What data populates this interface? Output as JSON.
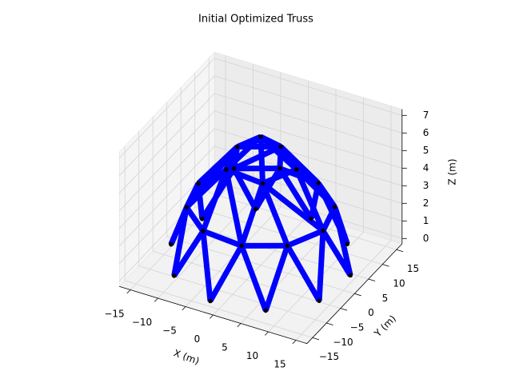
{
  "chart_data": {
    "type": "truss3d",
    "title": "Initial Optimized Truss",
    "xlabel": "X (m)",
    "ylabel": "Y (m)",
    "zlabel": "Z (m)",
    "xlim": [
      -17,
      17
    ],
    "ylim": [
      -17,
      17
    ],
    "zlim": [
      -0.3,
      7.35
    ],
    "xticks": [
      {
        "value": -15,
        "label": "−15"
      },
      {
        "value": -10,
        "label": "−10"
      },
      {
        "value": -5,
        "label": "−5"
      },
      0,
      5,
      10,
      15
    ],
    "yticks": [
      {
        "value": -15,
        "label": "−15"
      },
      {
        "value": -10,
        "label": "−10"
      },
      {
        "value": -5,
        "label": "−5"
      },
      0,
      5,
      10,
      15
    ],
    "zticks": [
      0,
      1,
      2,
      3,
      4,
      5,
      6,
      7
    ],
    "grid": true,
    "member_color": "#0000ff",
    "node_color": "#000000",
    "nodes": {
      "x": [
        7.5,
        13.7,
        14.67,
        10.04,
        1.57,
        -7.5,
        -13.7,
        -14.67,
        -10.04,
        -1.57,
        8.92,
        11.93,
        10.39,
        4.88,
        -2.49,
        -8.92,
        -11.93,
        -10.39,
        -4.88,
        2.49,
        3.0,
        5.87,
        0.63,
        -5.48,
        -4.01,
        0
      ],
      "y": [
        -12.99,
        -6.1,
        3.12,
        11.15,
        14.92,
        12.99,
        6.1,
        -3.12,
        -11.15,
        -14.92,
        -8.03,
        -1.25,
        6.0,
        10.96,
        11.74,
        8.03,
        1.25,
        -6.0,
        -10.96,
        -11.74,
        -5.2,
        1.25,
        5.97,
        2.44,
        -4.46,
        0
      ],
      "z": [
        0,
        0,
        0,
        0,
        0,
        0,
        0,
        0,
        0,
        0,
        3,
        3,
        3,
        3,
        3,
        3,
        3,
        3,
        3,
        3,
        5.5,
        5.5,
        5.5,
        5.5,
        5.5,
        7
      ]
    },
    "members": [
      [
        0,
        10
      ],
      [
        1,
        11
      ],
      [
        2,
        12
      ],
      [
        3,
        13
      ],
      [
        4,
        14
      ],
      [
        5,
        15
      ],
      [
        6,
        16
      ],
      [
        7,
        17
      ],
      [
        8,
        18
      ],
      [
        9,
        19
      ],
      [
        0,
        19
      ],
      [
        1,
        10
      ],
      [
        2,
        11
      ],
      [
        3,
        12
      ],
      [
        4,
        13
      ],
      [
        5,
        14
      ],
      [
        6,
        15
      ],
      [
        7,
        16
      ],
      [
        8,
        17
      ],
      [
        9,
        18
      ],
      [
        10,
        11
      ],
      [
        11,
        12
      ],
      [
        12,
        13
      ],
      [
        13,
        14
      ],
      [
        14,
        15
      ],
      [
        15,
        16
      ],
      [
        16,
        17
      ],
      [
        17,
        18
      ],
      [
        18,
        19
      ],
      [
        19,
        10
      ],
      [
        10,
        20
      ],
      [
        11,
        20
      ],
      [
        11,
        21
      ],
      [
        12,
        21
      ],
      [
        13,
        21
      ],
      [
        13,
        22
      ],
      [
        14,
        22
      ],
      [
        15,
        22
      ],
      [
        15,
        23
      ],
      [
        16,
        23
      ],
      [
        17,
        23
      ],
      [
        17,
        24
      ],
      [
        18,
        24
      ],
      [
        19,
        24
      ],
      [
        19,
        20
      ],
      [
        20,
        21
      ],
      [
        21,
        22
      ],
      [
        22,
        23
      ],
      [
        23,
        24
      ],
      [
        24,
        20
      ],
      [
        20,
        25
      ],
      [
        21,
        25
      ],
      [
        22,
        25
      ],
      [
        23,
        25
      ],
      [
        24,
        25
      ]
    ]
  }
}
